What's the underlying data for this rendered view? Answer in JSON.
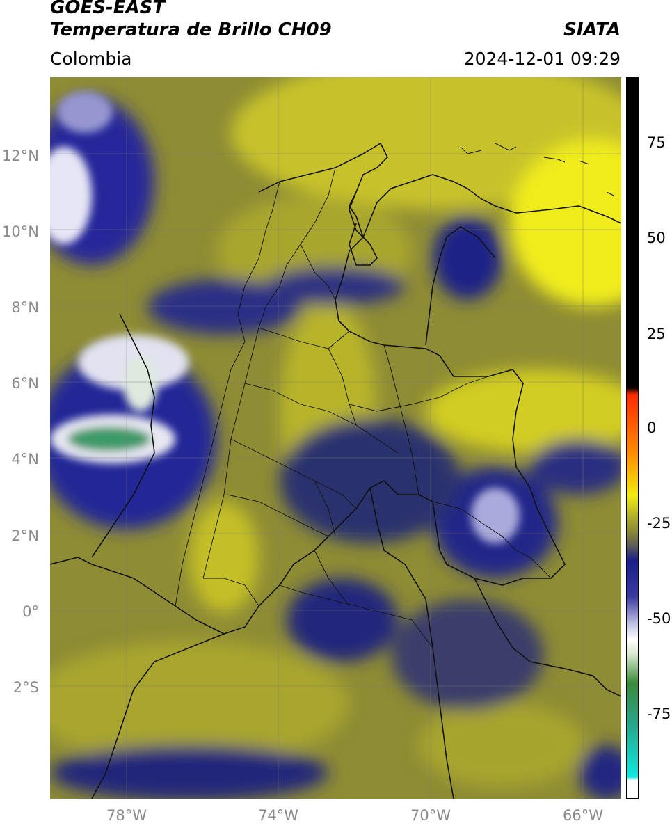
{
  "header": {
    "title_line1": "GOES-EAST",
    "title_line2": "Temperatura de Brillo CH09",
    "region": "Colombia",
    "source": "SIATA",
    "datetime": "2024-12-01 09:29"
  },
  "map": {
    "lat_labels": [
      "12°N",
      "10°N",
      "8°N",
      "6°N",
      "4°N",
      "2°N",
      "0°",
      "2°S"
    ],
    "lon_labels": [
      "78°W",
      "74°W",
      "70°W",
      "66°W"
    ],
    "extent": {
      "lon_min": -80.0,
      "lon_max": -65.0,
      "lat_min": -5.0,
      "lat_max": 14.0
    },
    "grid": true,
    "colors": {
      "warm": "#d8d020",
      "mid": "#9a9830",
      "cold": "#252a8a",
      "very_cold": "#ffffff",
      "coldest": "#4aa060"
    }
  },
  "colorbar": {
    "ticks": [
      "75",
      "50",
      "25",
      "0",
      "-25",
      "-50",
      "-75"
    ],
    "tick_values": [
      75,
      50,
      25,
      0,
      -25,
      -50,
      -75
    ],
    "range": [
      -95,
      90
    ]
  }
}
